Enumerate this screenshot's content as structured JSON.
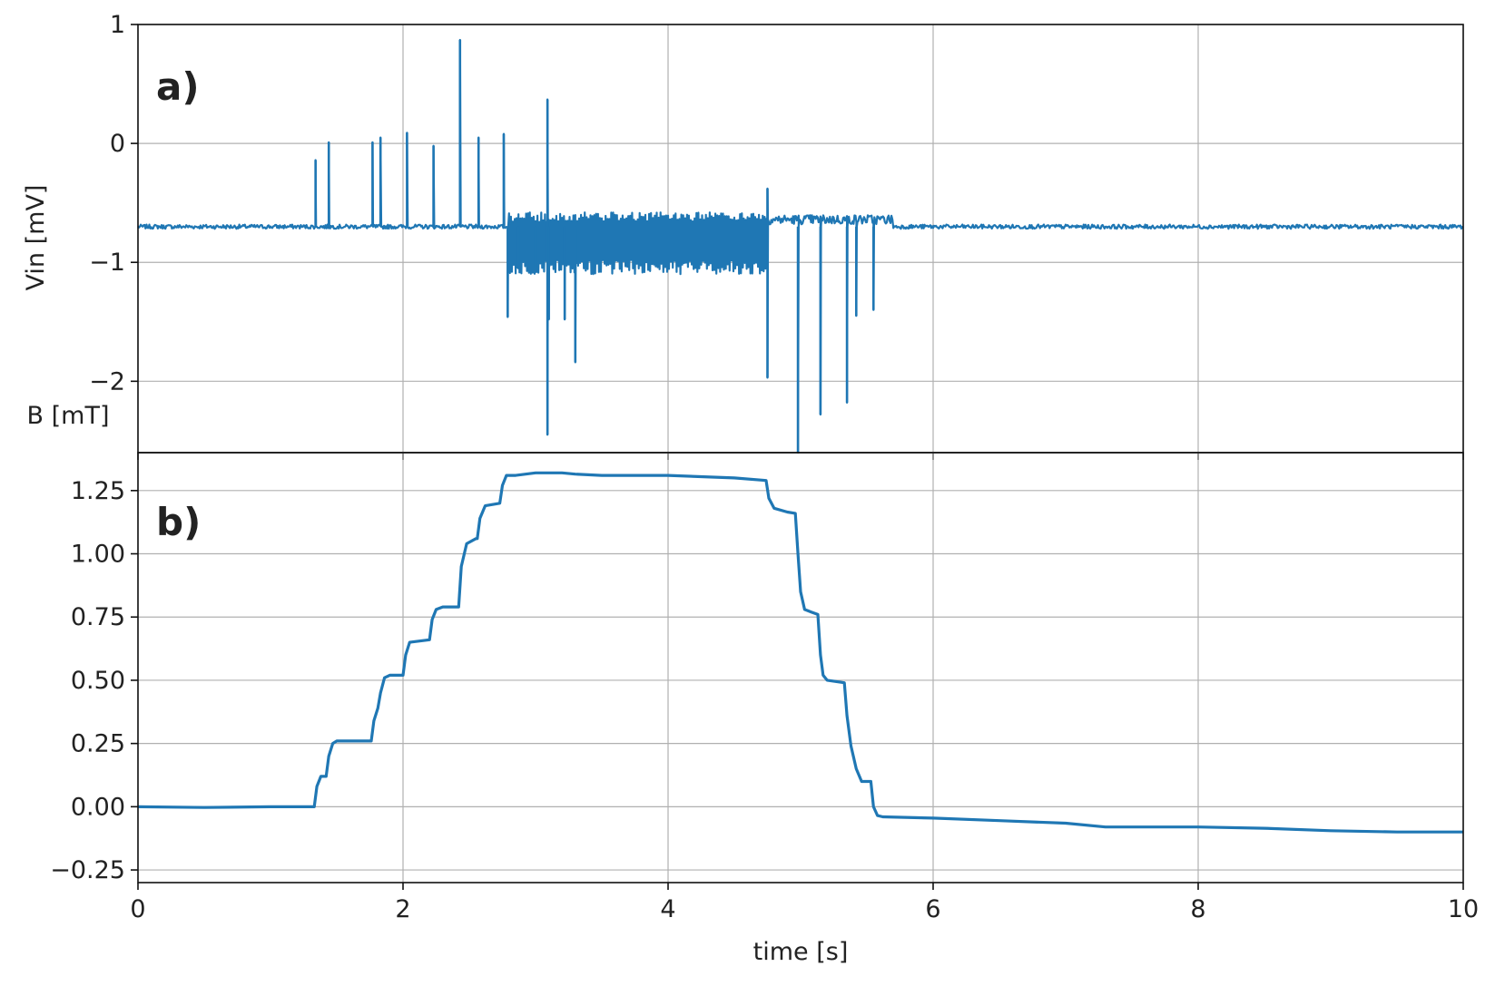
{
  "chart_data": [
    {
      "type": "line",
      "panel_label": "a)",
      "ylabel": "Vin [mV]",
      "xlabel": "",
      "xlim": [
        0,
        10
      ],
      "ylim": [
        -2.6,
        1.0
      ],
      "xticks": [
        0,
        2,
        4,
        6,
        8,
        10
      ],
      "xtick_labels": [
        "",
        "",
        "",
        "",
        "",
        ""
      ],
      "yticks": [
        1,
        0,
        -1,
        -2
      ],
      "ytick_labels": [
        "1",
        "0",
        "−1",
        "−2"
      ],
      "grid": true,
      "color": "#1f77b4",
      "baseline": -0.7,
      "noisy_band": {
        "x": [
          2.8,
          4.75
        ],
        "upper": -0.58,
        "lower": -1.1
      },
      "spikes": [
        {
          "x": 1.34,
          "y": -0.14
        },
        {
          "x": 1.44,
          "y": 0.01
        },
        {
          "x": 1.77,
          "y": 0.01
        },
        {
          "x": 1.83,
          "y": 0.05
        },
        {
          "x": 2.03,
          "y": 0.09
        },
        {
          "x": 2.23,
          "y": -0.02
        },
        {
          "x": 2.43,
          "y": 0.87
        },
        {
          "x": 2.57,
          "y": 0.05
        },
        {
          "x": 2.76,
          "y": 0.08
        },
        {
          "x": 2.79,
          "y": -1.46
        },
        {
          "x": 2.87,
          "y": -1.05
        },
        {
          "x": 3.0,
          "y": -1.05
        },
        {
          "x": 3.09,
          "y": 0.37
        },
        {
          "x": 3.09,
          "y": -2.45
        },
        {
          "x": 3.3,
          "y": -1.84
        },
        {
          "x": 3.1,
          "y": -1.48
        },
        {
          "x": 3.22,
          "y": -1.48
        },
        {
          "x": 4.75,
          "y": -0.38
        },
        {
          "x": 4.75,
          "y": -1.97
        },
        {
          "x": 4.98,
          "y": -2.6
        },
        {
          "x": 5.15,
          "y": -2.28
        },
        {
          "x": 5.35,
          "y": -2.18
        },
        {
          "x": 5.42,
          "y": -1.45
        },
        {
          "x": 5.55,
          "y": -1.4
        }
      ]
    },
    {
      "type": "line",
      "panel_label": "b)",
      "ylabel": "B [mT]",
      "xlabel": "time [s]",
      "xlim": [
        0,
        10
      ],
      "ylim": [
        -0.3,
        1.4
      ],
      "xticks": [
        0,
        2,
        4,
        6,
        8,
        10
      ],
      "xtick_labels": [
        "0",
        "2",
        "4",
        "6",
        "8",
        "10"
      ],
      "yticks": [
        1.25,
        1.0,
        0.75,
        0.5,
        0.25,
        0.0,
        -0.25
      ],
      "ytick_labels": [
        "1.25",
        "1.00",
        "0.75",
        "0.50",
        "0.25",
        "0.00",
        "−0.25"
      ],
      "grid": true,
      "color": "#1f77b4",
      "x": [
        0,
        0.5,
        1.0,
        1.33,
        1.35,
        1.38,
        1.42,
        1.44,
        1.47,
        1.5,
        1.76,
        1.78,
        1.81,
        1.83,
        1.86,
        1.9,
        2.0,
        2.02,
        2.05,
        2.2,
        2.22,
        2.25,
        2.3,
        2.42,
        2.44,
        2.48,
        2.55,
        2.56,
        2.58,
        2.62,
        2.73,
        2.75,
        2.78,
        2.85,
        3.0,
        3.2,
        3.3,
        3.5,
        4.0,
        4.5,
        4.74,
        4.76,
        4.8,
        4.9,
        4.96,
        4.98,
        5.0,
        5.03,
        5.08,
        5.13,
        5.15,
        5.17,
        5.2,
        5.33,
        5.35,
        5.38,
        5.42,
        5.46,
        5.53,
        5.55,
        5.58,
        5.62,
        6.0,
        6.5,
        7.0,
        7.3,
        8.0,
        8.5,
        9.0,
        9.5,
        10.0
      ],
      "y": [
        0.0,
        -0.003,
        0.0,
        0.0,
        0.08,
        0.12,
        0.12,
        0.2,
        0.25,
        0.26,
        0.26,
        0.34,
        0.39,
        0.45,
        0.51,
        0.52,
        0.52,
        0.6,
        0.65,
        0.66,
        0.74,
        0.78,
        0.79,
        0.79,
        0.95,
        1.04,
        1.06,
        1.06,
        1.14,
        1.19,
        1.2,
        1.27,
        1.31,
        1.31,
        1.32,
        1.32,
        1.315,
        1.31,
        1.31,
        1.3,
        1.29,
        1.22,
        1.18,
        1.165,
        1.16,
        1.0,
        0.85,
        0.78,
        0.77,
        0.76,
        0.6,
        0.52,
        0.5,
        0.49,
        0.36,
        0.24,
        0.15,
        0.1,
        0.1,
        0.0,
        -0.035,
        -0.04,
        -0.045,
        -0.055,
        -0.065,
        -0.08,
        -0.08,
        -0.085,
        -0.095,
        -0.1,
        -0.1
      ]
    }
  ]
}
